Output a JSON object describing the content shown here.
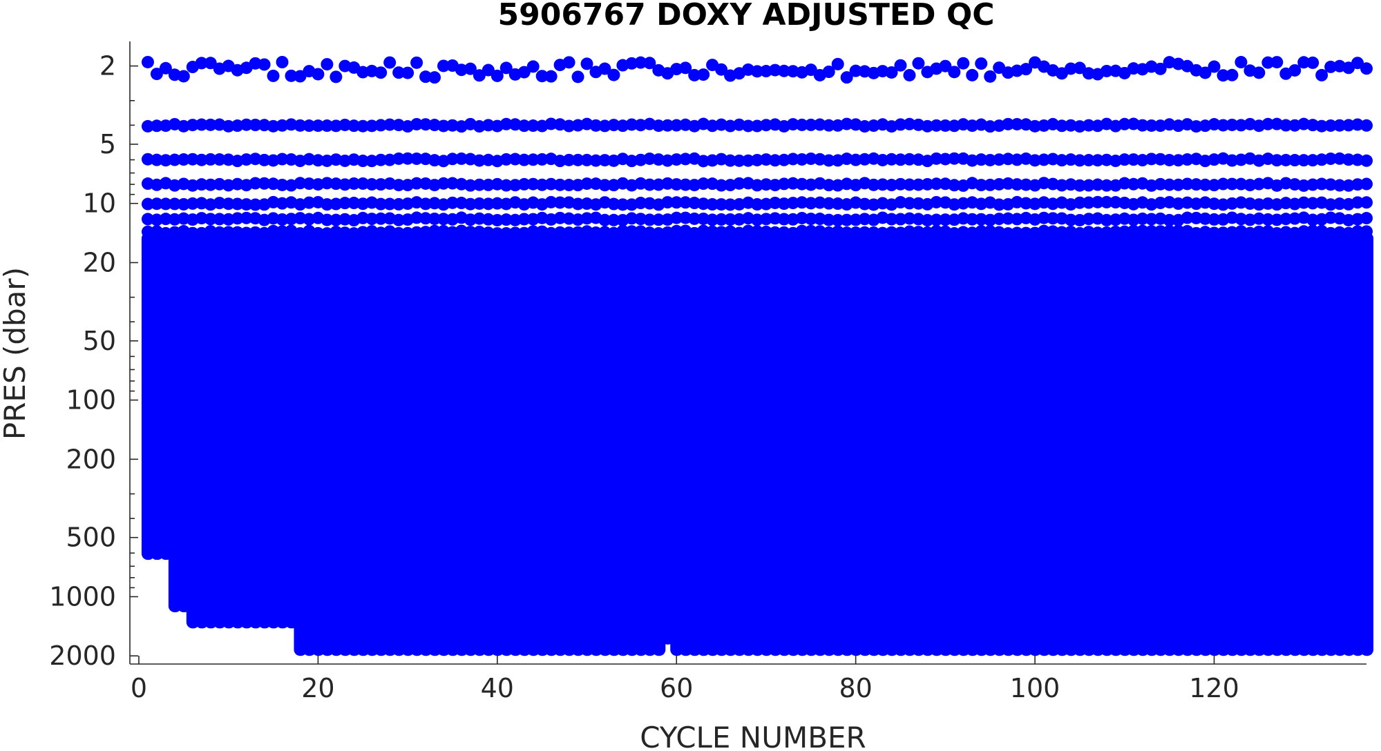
{
  "chart_data": {
    "type": "scatter",
    "title": "5906767  DOXY ADJUSTED QC",
    "xlabel": "CYCLE NUMBER",
    "ylabel": "PRES (dbar)",
    "xlim": [
      -1,
      137
    ],
    "ylim": [
      2200,
      1.5
    ],
    "y_scale": "log",
    "y_reversed": true,
    "xticks": [
      0,
      20,
      40,
      60,
      80,
      100,
      120
    ],
    "xtick_labels": [
      "0",
      "20",
      "40",
      "60",
      "80",
      "100",
      "120"
    ],
    "yticks": [
      2,
      5,
      10,
      20,
      50,
      100,
      200,
      500,
      1000,
      2000
    ],
    "ytick_labels": [
      "2",
      "5",
      "10",
      "20",
      "50",
      "100",
      "200",
      "500",
      "1000",
      "2000"
    ],
    "grid": false,
    "marker_color": "#0000ff",
    "series": [
      {
        "cycles_first": 1,
        "cycles_last": 137,
        "top_levels_dbar": [
          2.1,
          4.0,
          6.0,
          8.0,
          10.0,
          12.0,
          14.0
        ],
        "dense_profile_top_dbar": 14,
        "max_pressure_by_cycle_range": [
          {
            "from": 1,
            "to": 3,
            "max_pres": 650
          },
          {
            "from": 4,
            "to": 5,
            "max_pres": 1200
          },
          {
            "from": 6,
            "to": 17,
            "max_pres": 1450
          },
          {
            "from": 18,
            "to": 58,
            "max_pres": 2000
          },
          {
            "from": 59,
            "to": 59,
            "max_pres": 1750
          },
          {
            "from": 60,
            "to": 137,
            "max_pres": 2000
          }
        ]
      }
    ]
  }
}
